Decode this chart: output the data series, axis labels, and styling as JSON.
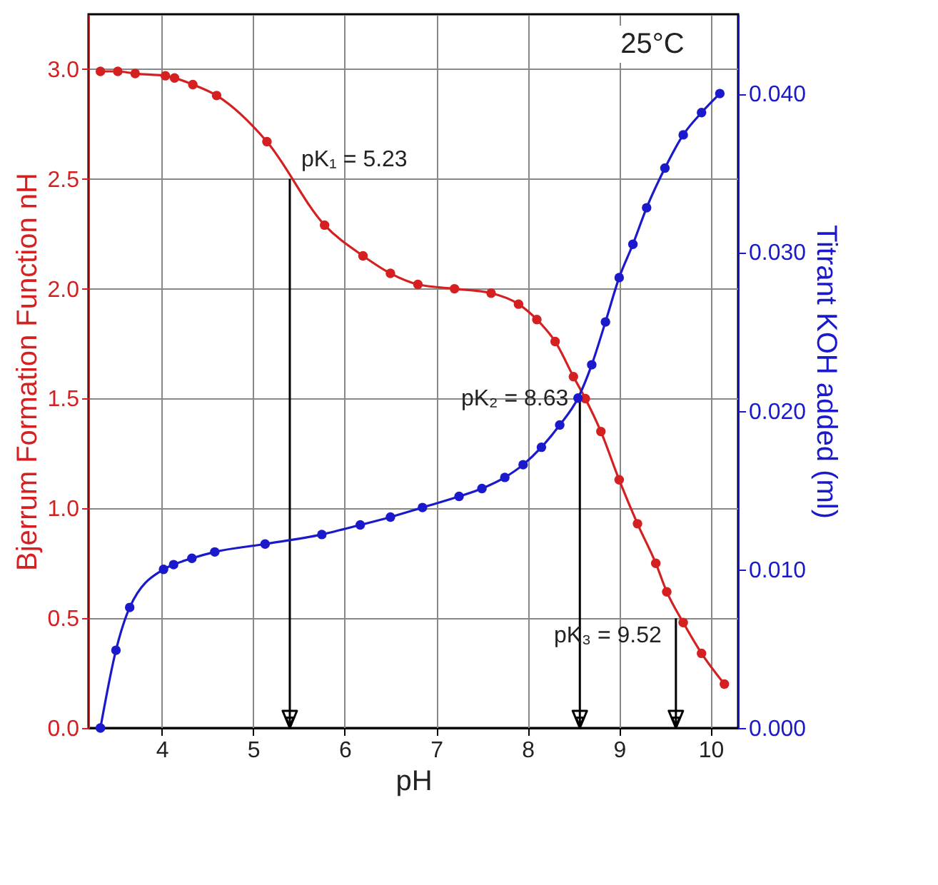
{
  "chart_data": {
    "type": "line",
    "xlabel": "pH",
    "ylabel": "Bjerrum Formation Function nH",
    "y2label": "Titrant KOH added (ml)",
    "xlim": [
      3.2,
      10.3
    ],
    "xticks": [
      4,
      5,
      6,
      7,
      8,
      9,
      10
    ],
    "ylim": [
      0,
      3.25
    ],
    "yticks": [
      {
        "value": 0,
        "label": "0.0"
      },
      0.5,
      {
        "value": 1,
        "label": "1.0"
      },
      1.5,
      {
        "value": 2,
        "label": "2.0"
      },
      2.5,
      {
        "value": 3,
        "label": "3.0"
      }
    ],
    "y2lim": [
      0,
      0.045
    ],
    "y2ticks": [
      {
        "value": 0,
        "label": "0.000"
      },
      {
        "value": 0.01,
        "label": "0.010"
      },
      {
        "value": 0.02,
        "label": "0.020"
      },
      {
        "value": 0.03,
        "label": "0.030"
      },
      {
        "value": 0.04,
        "label": "0.040"
      }
    ],
    "grid": true,
    "marker": "circle",
    "line_style": "solid",
    "series": [
      {
        "color": "#d42020",
        "x": [
          3.33,
          3.52,
          3.71,
          4.04,
          4.14,
          4.34,
          4.6,
          5.15,
          5.78,
          6.2,
          6.5,
          6.8,
          7.2,
          7.6,
          7.9,
          8.1,
          8.3,
          8.5,
          8.63,
          8.8,
          9.0,
          9.2,
          9.4,
          9.52,
          9.7,
          9.9,
          10.15
        ],
        "values": [
          2.99,
          2.99,
          2.98,
          2.97,
          2.96,
          2.93,
          2.88,
          2.67,
          2.29,
          2.15,
          2.07,
          2.02,
          2.0,
          1.98,
          1.93,
          1.86,
          1.76,
          1.6,
          1.5,
          1.35,
          1.13,
          0.93,
          0.75,
          0.62,
          0.48,
          0.34,
          0.2
        ]
      },
      {
        "color": "#1a1acc",
        "axis": "y2",
        "x": [
          3.33,
          3.5,
          3.65,
          4.02,
          4.13,
          4.33,
          4.58,
          5.13,
          5.75,
          6.17,
          6.5,
          6.85,
          7.25,
          7.5,
          7.75,
          7.95,
          8.15,
          8.35,
          8.55,
          8.7,
          8.85,
          9.0,
          9.15,
          9.3,
          9.5,
          9.7,
          9.9,
          10.1
        ],
        "values": [
          0.0,
          0.0049,
          0.0076,
          0.01,
          0.0103,
          0.0107,
          0.0111,
          0.0116,
          0.0122,
          0.0128,
          0.0133,
          0.0139,
          0.0146,
          0.0151,
          0.0158,
          0.0166,
          0.0177,
          0.0191,
          0.0208,
          0.0229,
          0.0256,
          0.0284,
          0.0305,
          0.0328,
          0.0353,
          0.0374,
          0.0388,
          0.04
        ]
      }
    ],
    "annotations": [
      "25°C",
      {
        "text": "pK₁ = 5.23",
        "x": 5.4,
        "y": 2.5
      },
      {
        "text": "pK₂ = 8.63",
        "x": 8.57,
        "y": 1.5
      },
      {
        "text": "pK₃ = 9.52",
        "x": 9.62,
        "y": 0.5
      }
    ]
  }
}
